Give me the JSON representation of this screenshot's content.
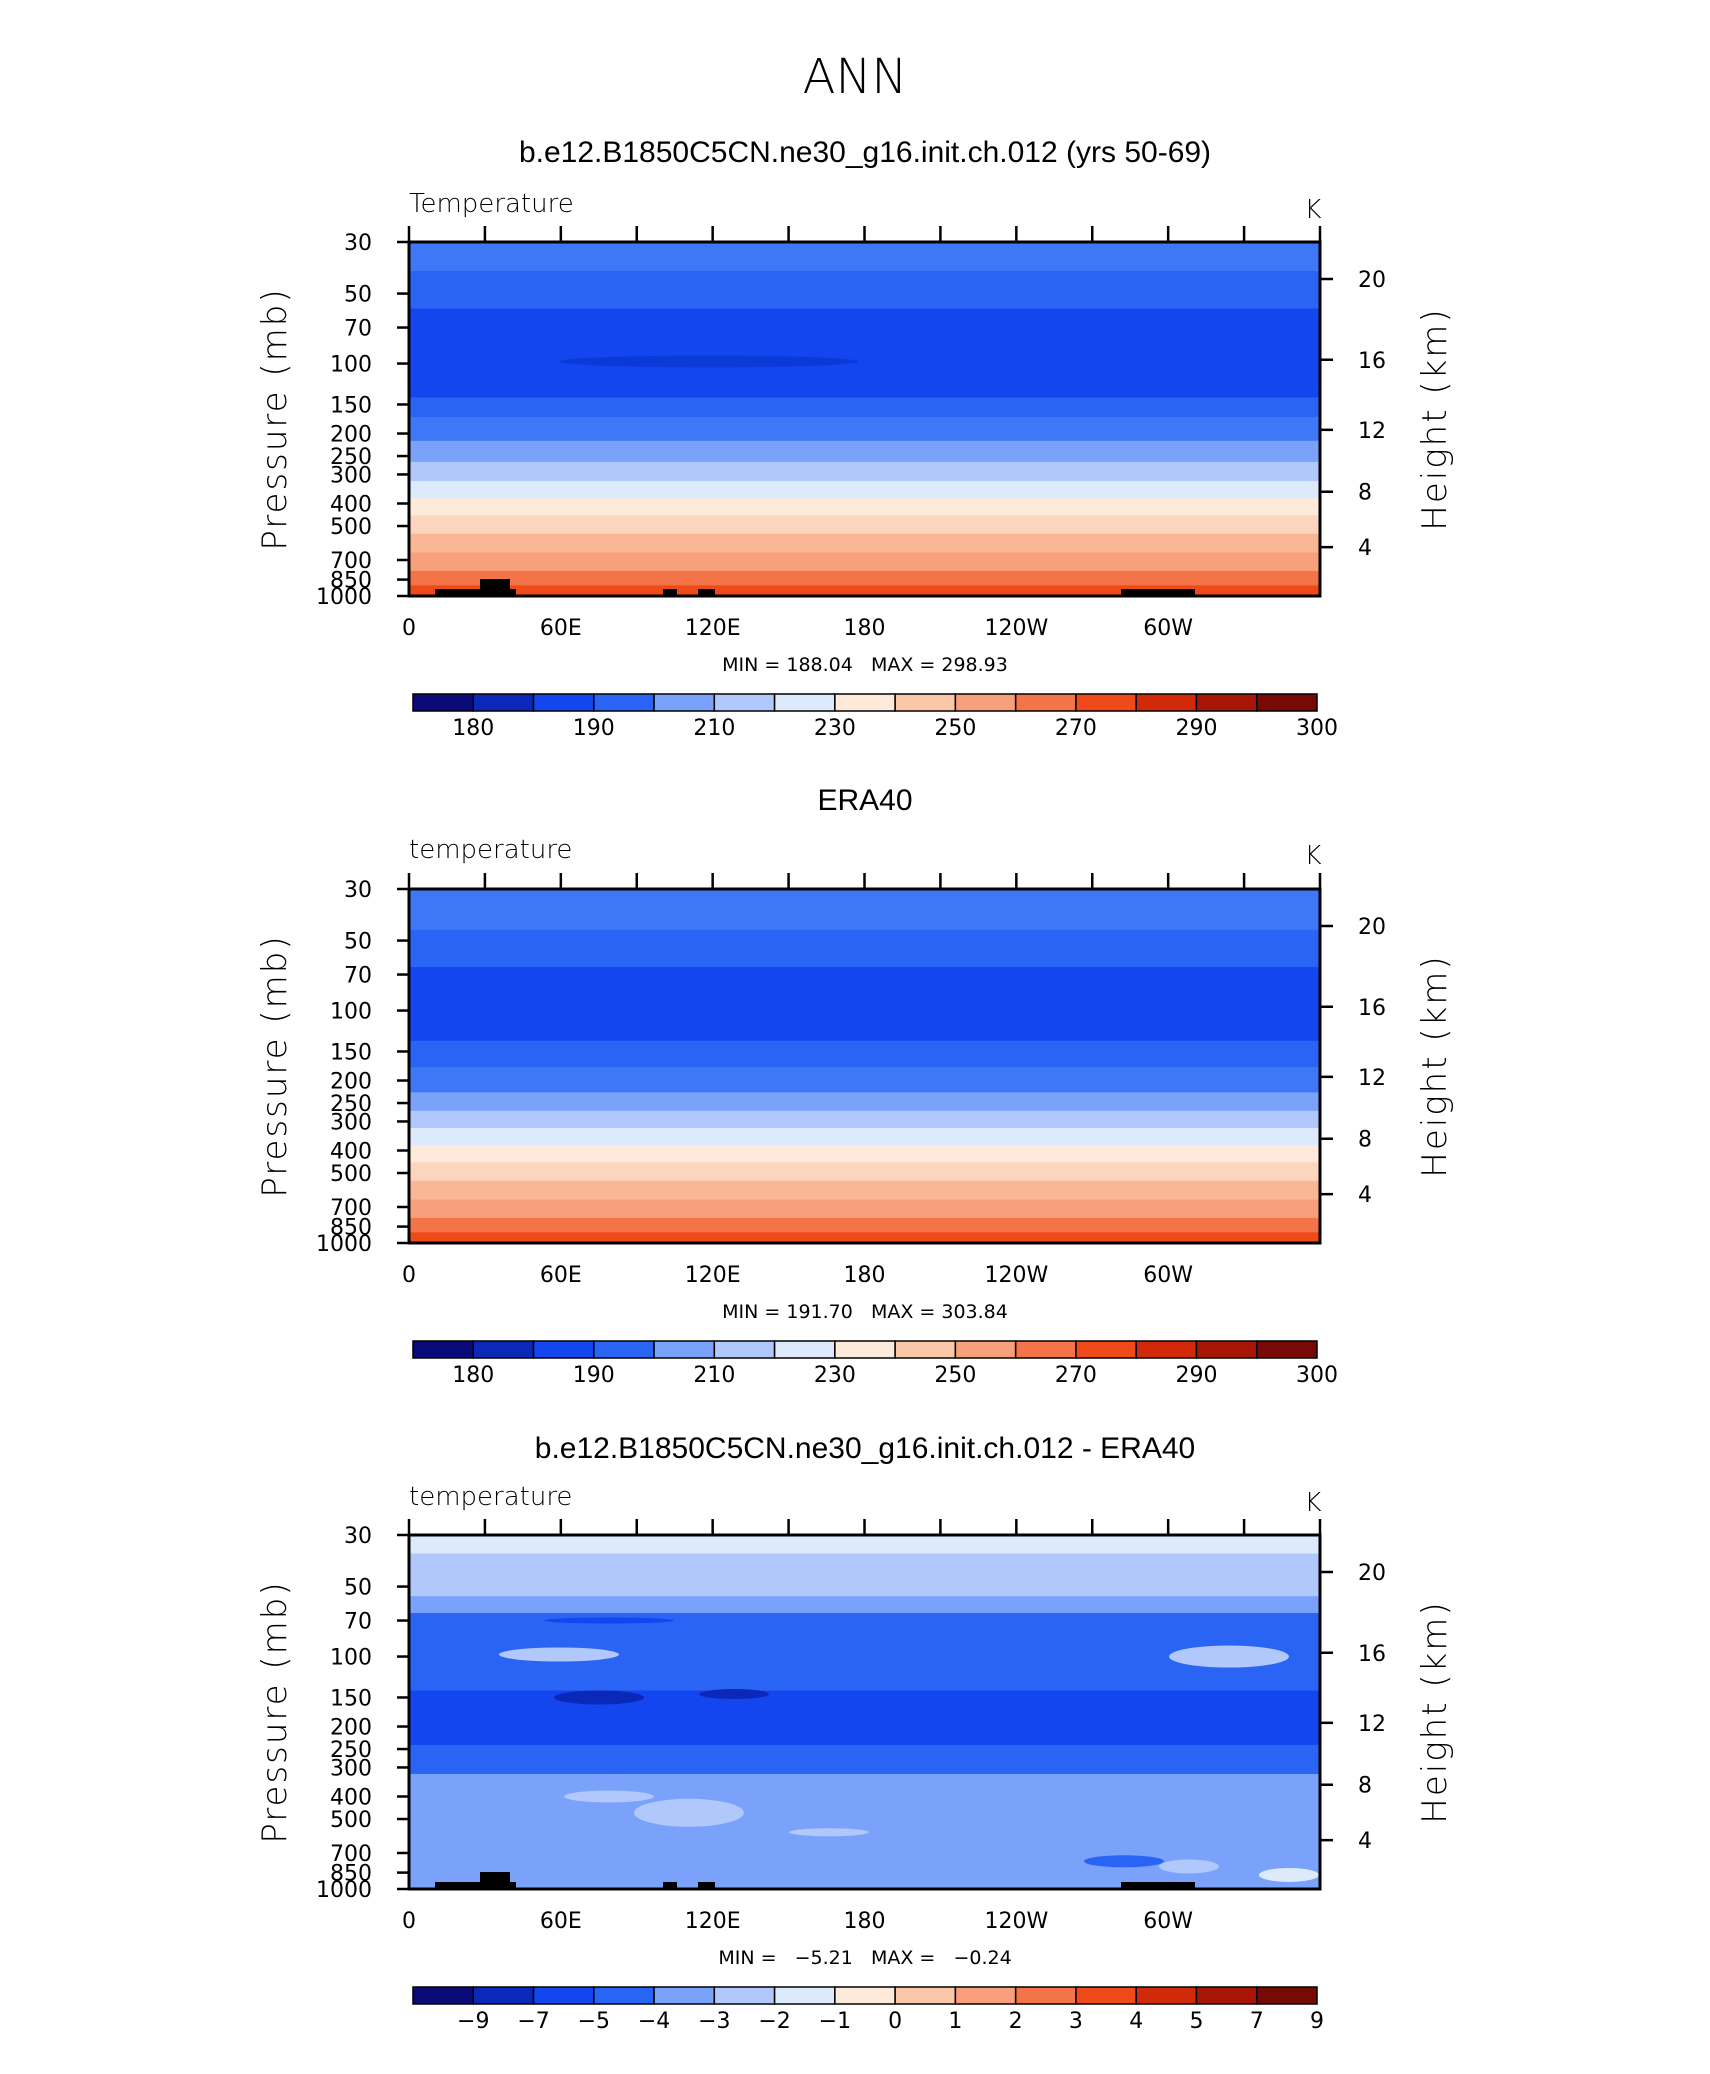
{
  "page": {
    "title": "ANN"
  },
  "panels": [
    {
      "title": "b.e12.B1850C5CN.ne30_g16.init.ch.012 (yrs 50-69)",
      "left_label": "Temperature",
      "units": "K",
      "y_axis_title": "Pressure (mb)",
      "right_axis_title": "Height (km)",
      "minmax": "MIN = 188.04   MAX = 298.93",
      "colorbar_labels": [
        "180",
        "190",
        "210",
        "230",
        "250",
        "270",
        "290",
        "300"
      ],
      "colorbar_key": "abs"
    },
    {
      "title": "ERA40",
      "left_label": "temperature",
      "units": "K",
      "y_axis_title": "Pressure (mb)",
      "right_axis_title": "Height (km)",
      "minmax": "MIN = 191.70   MAX = 303.84",
      "colorbar_labels": [
        "180",
        "190",
        "210",
        "230",
        "250",
        "270",
        "290",
        "300"
      ],
      "colorbar_key": "abs"
    },
    {
      "title": "b.e12.B1850C5CN.ne30_g16.init.ch.012 - ERA40",
      "left_label": "temperature",
      "units": "K",
      "y_axis_title": "Pressure (mb)",
      "right_axis_title": "Height (km)",
      "minmax": "MIN =   −5.21   MAX =   −0.24",
      "colorbar_labels": [
        "−9",
        "−7",
        "−5",
        "−4",
        "−3",
        "−2",
        "−1",
        "0",
        "1",
        "2",
        "3",
        "4",
        "5",
        "7",
        "9"
      ],
      "colorbar_key": "diff"
    }
  ],
  "colorbar_colors": [
    "#0a0a78",
    "#0c28b8",
    "#1446f0",
    "#2a64f5",
    "#7aa2fa",
    "#b0c8fb",
    "#dceafc",
    "#fdeada",
    "#fbc7a9",
    "#f8a07c",
    "#f4744a",
    "#ee4a1a",
    "#d22a08",
    "#a81606",
    "#780a06"
  ],
  "chart_data": [
    {
      "type": "heatmap",
      "title": "b.e12.B1850C5CN.ne30_g16.init.ch.012 (yrs 50-69)",
      "xlabel": "",
      "ylabel": "Pressure (mb)",
      "y2label": "Height (km)",
      "x_ticks": [
        "0",
        "60E",
        "120E",
        "180",
        "120W",
        "60W"
      ],
      "y_ticks": [
        30,
        50,
        70,
        100,
        150,
        200,
        250,
        300,
        400,
        500,
        700,
        850,
        1000
      ],
      "y2_ticks": [
        4,
        8,
        12,
        16,
        20
      ],
      "ylim": [
        1000,
        30
      ],
      "y_scale": "log",
      "colorbar_levels": [
        180,
        190,
        210,
        230,
        250,
        270,
        290,
        300
      ],
      "min": 188.04,
      "max": 298.93,
      "layers": [
        {
          "top": 30,
          "bottom": 40,
          "value": 210
        },
        {
          "top": 40,
          "bottom": 58,
          "value": 200
        },
        {
          "top": 58,
          "bottom": 140,
          "value": 195
        },
        {
          "top": 140,
          "bottom": 170,
          "value": 200
        },
        {
          "top": 170,
          "bottom": 215,
          "value": 210
        },
        {
          "top": 215,
          "bottom": 265,
          "value": 220
        },
        {
          "top": 265,
          "bottom": 320,
          "value": 230
        },
        {
          "top": 320,
          "bottom": 380,
          "value": 245
        },
        {
          "top": 380,
          "bottom": 450,
          "value": 255
        },
        {
          "top": 450,
          "bottom": 540,
          "value": 262
        },
        {
          "top": 540,
          "bottom": 650,
          "value": 270
        },
        {
          "top": 650,
          "bottom": 780,
          "value": 278
        },
        {
          "top": 780,
          "bottom": 900,
          "value": 285
        },
        {
          "top": 900,
          "bottom": 1000,
          "value": 290
        }
      ]
    },
    {
      "type": "heatmap",
      "title": "ERA40",
      "xlabel": "",
      "ylabel": "Pressure (mb)",
      "y2label": "Height (km)",
      "x_ticks": [
        "0",
        "60E",
        "120E",
        "180",
        "120W",
        "60W"
      ],
      "y_ticks": [
        30,
        50,
        70,
        100,
        150,
        200,
        250,
        300,
        400,
        500,
        700,
        850,
        1000
      ],
      "y2_ticks": [
        4,
        8,
        12,
        16,
        20
      ],
      "ylim": [
        1000,
        30
      ],
      "y_scale": "log",
      "colorbar_levels": [
        180,
        190,
        210,
        230,
        250,
        270,
        290,
        300
      ],
      "min": 191.7,
      "max": 303.84,
      "layers": [
        {
          "top": 30,
          "bottom": 45,
          "value": 210
        },
        {
          "top": 45,
          "bottom": 65,
          "value": 200
        },
        {
          "top": 65,
          "bottom": 135,
          "value": 195
        },
        {
          "top": 135,
          "bottom": 175,
          "value": 200
        },
        {
          "top": 175,
          "bottom": 225,
          "value": 210
        },
        {
          "top": 225,
          "bottom": 270,
          "value": 220
        },
        {
          "top": 270,
          "bottom": 320,
          "value": 230
        },
        {
          "top": 320,
          "bottom": 380,
          "value": 245
        },
        {
          "top": 380,
          "bottom": 450,
          "value": 255
        },
        {
          "top": 450,
          "bottom": 540,
          "value": 262
        },
        {
          "top": 540,
          "bottom": 650,
          "value": 270
        },
        {
          "top": 650,
          "bottom": 780,
          "value": 278
        },
        {
          "top": 780,
          "bottom": 900,
          "value": 285
        },
        {
          "top": 900,
          "bottom": 1000,
          "value": 292
        }
      ]
    },
    {
      "type": "heatmap",
      "title": "b.e12.B1850C5CN.ne30_g16.init.ch.012 - ERA40",
      "xlabel": "",
      "ylabel": "Pressure (mb)",
      "y2label": "Height (km)",
      "x_ticks": [
        "0",
        "60E",
        "120E",
        "180",
        "120W",
        "60W"
      ],
      "y_ticks": [
        30,
        50,
        70,
        100,
        150,
        200,
        250,
        300,
        400,
        500,
        700,
        850,
        1000
      ],
      "y2_ticks": [
        4,
        8,
        12,
        16,
        20
      ],
      "ylim": [
        1000,
        30
      ],
      "y_scale": "log",
      "colorbar_levels": [
        -9,
        -7,
        -5,
        -4,
        -3,
        -2,
        -1,
        0,
        1,
        2,
        3,
        4,
        5,
        7,
        9
      ],
      "min": -5.21,
      "max": -0.24,
      "layers": [
        {
          "top": 30,
          "bottom": 36,
          "value": -0.5
        },
        {
          "top": 36,
          "bottom": 55,
          "value": -1.5
        },
        {
          "top": 55,
          "bottom": 65,
          "value": -2.5
        },
        {
          "top": 65,
          "bottom": 140,
          "value": -3.5
        },
        {
          "top": 140,
          "bottom": 240,
          "value": -4.5
        },
        {
          "top": 240,
          "bottom": 320,
          "value": -3.5
        },
        {
          "top": 320,
          "bottom": 1000,
          "value": -2.5
        }
      ]
    }
  ]
}
